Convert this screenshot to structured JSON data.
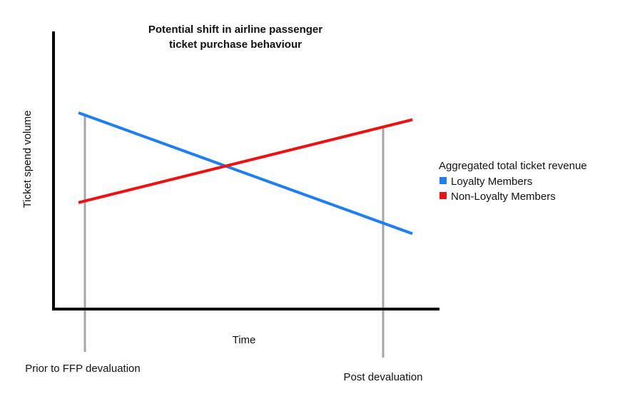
{
  "chart_data": {
    "type": "line",
    "title": [
      "Potential shift in airline passenger",
      "ticket purchase behaviour"
    ],
    "xlabel": "Time",
    "ylabel": "Ticket spend volume",
    "categories": [
      "Prior to FFP devaluation",
      "Post devaluation"
    ],
    "ylim": [
      0,
      100
    ],
    "grid": false,
    "legend": {
      "title": "Aggregated total ticket revenue",
      "placement": "right"
    },
    "series": [
      {
        "name": "Loyalty Members",
        "color": "#1f7ff0",
        "x": [
          0,
          1
        ],
        "values": [
          100,
          30
        ]
      },
      {
        "name": "Non-Loyalty Members",
        "color": "#ee1111",
        "x": [
          0,
          1
        ],
        "values": [
          48,
          96
        ]
      }
    ]
  }
}
